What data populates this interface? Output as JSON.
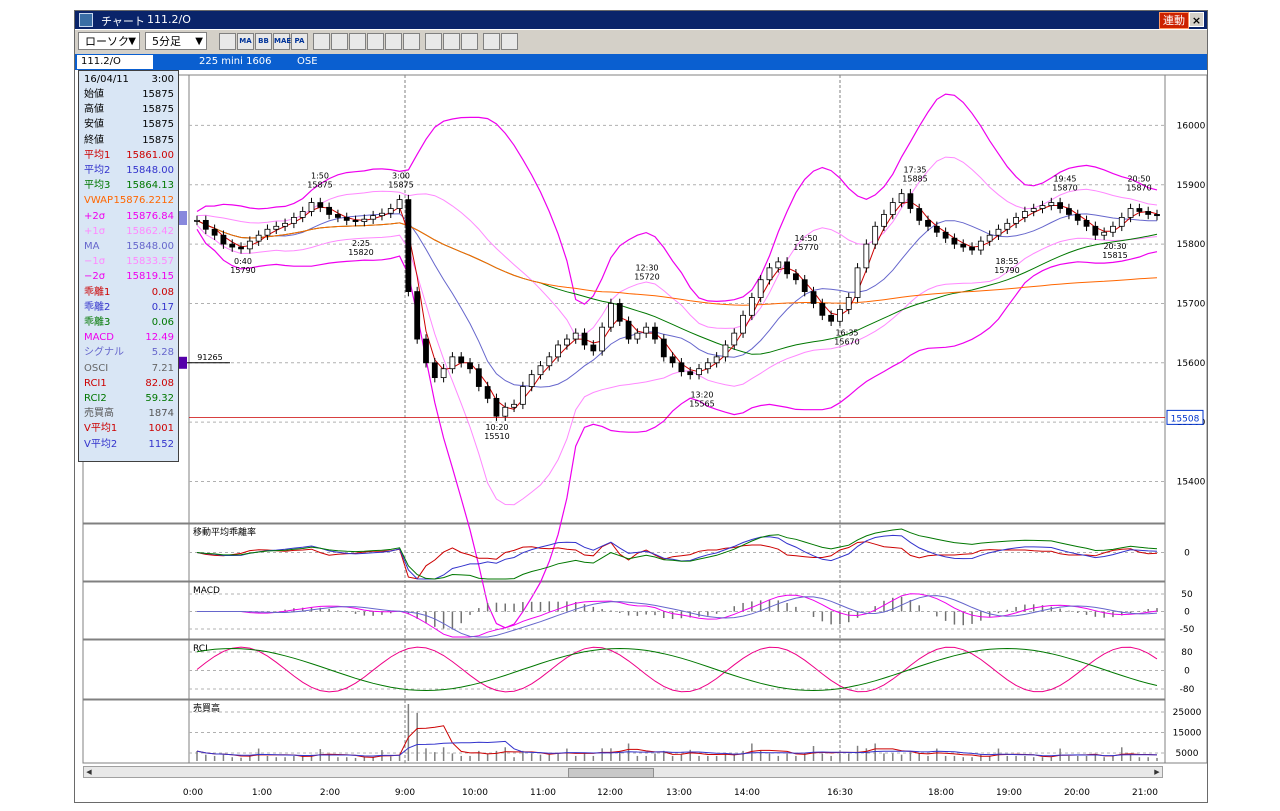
{
  "window": {
    "title": "チャート",
    "symbol": "111.2/O",
    "link_badge": "連動",
    "close_glyph": "×"
  },
  "toolbar": {
    "chart_type": "ローソク",
    "interval": "5分足",
    "tools": [
      {
        "icon": "crosshair-icon",
        "label": ""
      },
      {
        "icon": "moving-average-icon",
        "label": "MA"
      },
      {
        "icon": "bollinger-band-icon",
        "label": "BB"
      },
      {
        "icon": "mae-icon",
        "label": "MAE"
      },
      {
        "icon": "parabolic-icon",
        "label": "PA"
      },
      {
        "icon": "line-chart-icon",
        "label": ""
      },
      {
        "icon": "trendline-icon",
        "label": ""
      },
      {
        "icon": "wave-icon",
        "label": ""
      },
      {
        "icon": "magnifier-icon",
        "label": ""
      },
      {
        "icon": "ruler-icon",
        "label": ""
      },
      {
        "icon": "fibonacci-icon",
        "label": ""
      },
      {
        "icon": "pencil-icon",
        "label": ""
      },
      {
        "icon": "cursor-icon",
        "label": ""
      },
      {
        "icon": "eraser-icon",
        "label": ""
      },
      {
        "icon": "settings-icon",
        "label": ""
      },
      {
        "icon": "flag-icon",
        "label": ""
      }
    ]
  },
  "symbol_bar": {
    "symbol": "111.2/O",
    "contract": "225 mini 1606",
    "exchange": "OSE"
  },
  "info": {
    "date": "16/04/11",
    "time": "3:00",
    "rows": [
      {
        "label": "始値",
        "value": "15875",
        "color": "#000000"
      },
      {
        "label": "高値",
        "value": "15875",
        "color": "#000000"
      },
      {
        "label": "安値",
        "value": "15875",
        "color": "#000000"
      },
      {
        "label": "終値",
        "value": "15875",
        "color": "#000000"
      },
      {
        "label": "平均1",
        "value": "15861.00",
        "color": "#cc0000"
      },
      {
        "label": "平均2",
        "value": "15848.00",
        "color": "#3333cc"
      },
      {
        "label": "平均3",
        "value": "15864.13",
        "color": "#007700"
      },
      {
        "label": "VWAP",
        "value": "15876.2212",
        "color": "#ff6600"
      },
      {
        "label": "+2σ",
        "value": "15876.84",
        "color": "#ee00ee"
      },
      {
        "label": "+1σ",
        "value": "15862.42",
        "color": "#ff88ff"
      },
      {
        "label": "MA",
        "value": "15848.00",
        "color": "#6666cc"
      },
      {
        "label": "−1σ",
        "value": "15833.57",
        "color": "#ff88ff"
      },
      {
        "label": "−2σ",
        "value": "15819.15",
        "color": "#ee00ee"
      },
      {
        "label": "乖離1",
        "value": "0.08",
        "color": "#cc0000"
      },
      {
        "label": "乖離2",
        "value": "0.17",
        "color": "#3333cc"
      },
      {
        "label": "乖離3",
        "value": "0.06",
        "color": "#007700"
      },
      {
        "label": "MACD",
        "value": "12.49",
        "color": "#ee00ee"
      },
      {
        "label": "シグナル",
        "value": "5.28",
        "color": "#6666cc"
      },
      {
        "label": "OSCI",
        "value": "7.21",
        "color": "#666666"
      },
      {
        "label": "RCI1",
        "value": "82.08",
        "color": "#cc0000"
      },
      {
        "label": "RCI2",
        "value": "59.32",
        "color": "#007700"
      },
      {
        "label": "売買高",
        "value": "1874",
        "color": "#555555"
      },
      {
        "label": "V平均1",
        "value": "1001",
        "color": "#cc0000"
      },
      {
        "label": "V平均2",
        "value": "1152",
        "color": "#3333cc"
      }
    ]
  },
  "panels": {
    "deviation": "移動平均乖離率",
    "macd": "MACD",
    "rci": "RCI",
    "volume": "売買高"
  },
  "marker": {
    "value": "91265"
  },
  "current_price": "15508",
  "colors": {
    "ma1": "#cc0000",
    "ma2": "#3333cc",
    "ma3": "#007700",
    "vwap": "#ff6600",
    "band2": "#ee00ee",
    "band1": "#ff88ff",
    "band_ma": "#6666cc",
    "candle": "#000000"
  },
  "chart_data": [
    {
      "type": "candlestick",
      "title": "",
      "x_labels": [
        "0:00",
        "1:00",
        "2:00",
        "9:00",
        "10:00",
        "11:00",
        "12:00",
        "13:00",
        "14:00",
        "16:30",
        "18:00",
        "19:00",
        "20:00",
        "21:00"
      ],
      "y_ticks": [
        15400,
        15500,
        15600,
        15700,
        15800,
        15900,
        16000
      ],
      "ylim": [
        15330,
        16085
      ],
      "grid": true,
      "close": [
        15840,
        15825,
        15815,
        15800,
        15795,
        15792,
        15805,
        15815,
        15825,
        15830,
        15835,
        15845,
        15855,
        15870,
        15862,
        15850,
        15845,
        15840,
        15838,
        15842,
        15848,
        15852,
        15860,
        15875,
        15720,
        15640,
        15600,
        15575,
        15590,
        15610,
        15600,
        15590,
        15560,
        15540,
        15510,
        15525,
        15530,
        15560,
        15580,
        15595,
        15610,
        15630,
        15640,
        15650,
        15630,
        15620,
        15660,
        15700,
        15670,
        15640,
        15650,
        15660,
        15640,
        15610,
        15600,
        15585,
        15580,
        15590,
        15600,
        15610,
        15630,
        15650,
        15680,
        15710,
        15740,
        15760,
        15770,
        15750,
        15740,
        15720,
        15700,
        15680,
        15670,
        15690,
        15710,
        15760,
        15800,
        15830,
        15850,
        15870,
        15885,
        15860,
        15840,
        15830,
        15820,
        15810,
        15800,
        15795,
        15790,
        15805,
        15815,
        15825,
        15835,
        15845,
        15855,
        15860,
        15865,
        15870,
        15860,
        15850,
        15840,
        15830,
        15815,
        15820,
        15830,
        15845,
        15860,
        15855,
        15850,
        15848
      ],
      "annotations": [
        {
          "time": "0:40",
          "value": 15790,
          "pos": "below"
        },
        {
          "time": "1:50",
          "value": 15875,
          "pos": "above"
        },
        {
          "time": "2:25",
          "value": 15820,
          "pos": "below"
        },
        {
          "time": "3:00",
          "value": 15875,
          "pos": "above"
        },
        {
          "time": "10:20",
          "value": 15510,
          "pos": "below"
        },
        {
          "time": "12:30",
          "value": 15720,
          "pos": "above"
        },
        {
          "time": "13:20",
          "value": 15565,
          "pos": "below"
        },
        {
          "time": "14:50",
          "value": 15770,
          "pos": "above"
        },
        {
          "time": "16:35",
          "value": 15670,
          "pos": "below"
        },
        {
          "time": "17:35",
          "value": 15885,
          "pos": "above"
        },
        {
          "time": "18:55",
          "value": 15790,
          "pos": "below"
        },
        {
          "time": "19:45",
          "value": 15870,
          "pos": "above"
        },
        {
          "time": "20:30",
          "value": 15815,
          "pos": "below"
        },
        {
          "time": "20:50",
          "value": 15870,
          "pos": "above"
        }
      ]
    },
    {
      "type": "line",
      "title": "移動平均乖離率",
      "y_ticks": [
        0
      ]
    },
    {
      "type": "bar",
      "title": "MACD",
      "y_ticks": [
        50,
        0,
        -50
      ]
    },
    {
      "type": "line",
      "title": "RCI",
      "y_ticks": [
        80,
        0,
        -80
      ]
    },
    {
      "type": "bar",
      "title": "売買高",
      "y_ticks": [
        25000,
        15000,
        5000
      ]
    }
  ]
}
